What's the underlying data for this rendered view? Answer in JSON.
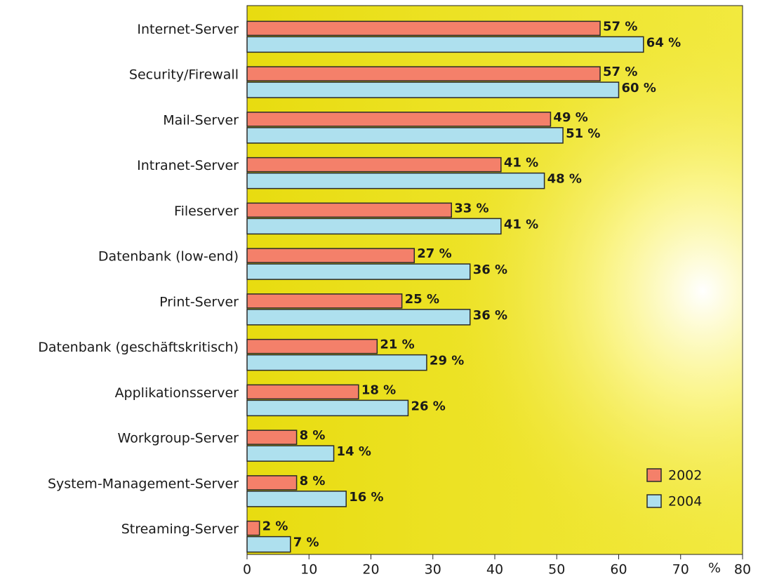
{
  "chart_data": {
    "type": "bar",
    "orientation": "horizontal",
    "categories": [
      "Internet-Server",
      "Security/Firewall",
      "Mail-Server",
      "Intranet-Server",
      "Fileserver",
      "Datenbank (low-end)",
      "Print-Server",
      "Datenbank (geschäftskritisch)",
      "Applikationsserver",
      "Workgroup-Server",
      "System-Management-Server",
      "Streaming-Server"
    ],
    "series": [
      {
        "name": "2002",
        "color": "#f4806a",
        "values": [
          57,
          57,
          49,
          41,
          33,
          27,
          25,
          21,
          18,
          8,
          8,
          2
        ],
        "value_labels": [
          "57 %",
          "57 %",
          "49 %",
          "41 %",
          "33 %",
          "27 %",
          "25 %",
          "21 %",
          "18 %",
          "8 %",
          "8 %",
          "2 %"
        ]
      },
      {
        "name": "2004",
        "color": "#aee0ee",
        "values": [
          64,
          60,
          51,
          48,
          41,
          36,
          36,
          29,
          26,
          14,
          16,
          7
        ],
        "value_labels": [
          "64 %",
          "60 %",
          "51 %",
          "48 %",
          "41 %",
          "36 %",
          "36 %",
          "29 %",
          "26 %",
          "14 %",
          "16 %",
          "7 %"
        ]
      }
    ],
    "x_label": "%",
    "xlim": [
      0,
      80
    ],
    "xticks": [
      0,
      10,
      20,
      30,
      40,
      50,
      60,
      70,
      80
    ],
    "legend": "lower right"
  }
}
